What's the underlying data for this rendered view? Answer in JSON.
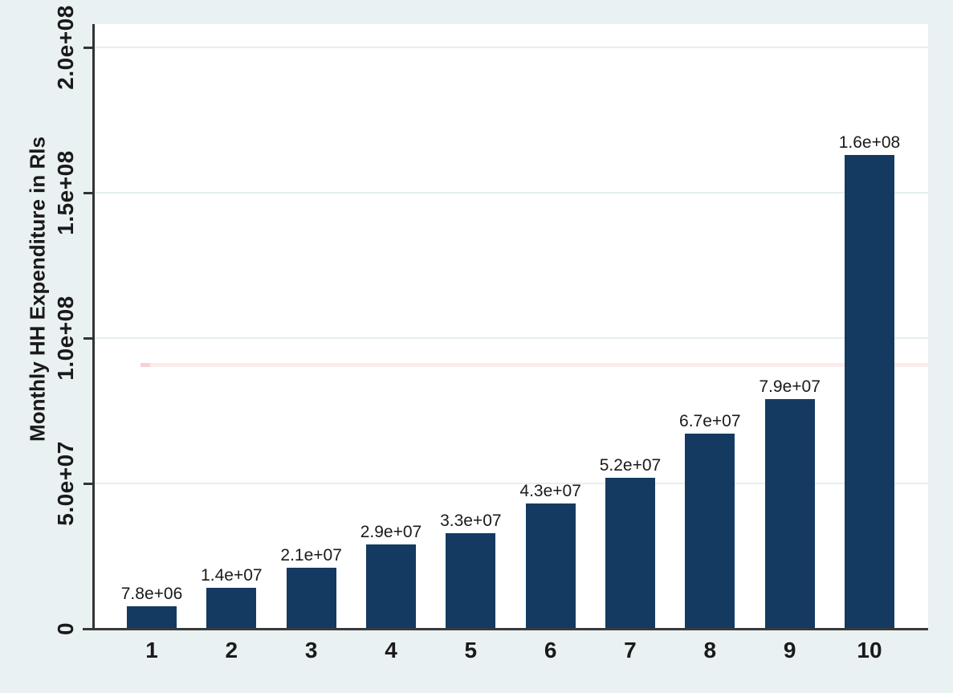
{
  "chart_data": {
    "type": "bar",
    "ylabel": "Monthly HH Expenditure in Rls",
    "xlabel": "",
    "categories": [
      "1",
      "2",
      "3",
      "4",
      "5",
      "6",
      "7",
      "8",
      "9",
      "10"
    ],
    "values": [
      7800000,
      14000000,
      21000000,
      29000000,
      33000000,
      43000000,
      52000000,
      67000000,
      79000000,
      163000000
    ],
    "bar_labels": [
      "7.8e+06",
      "1.4e+07",
      "2.1e+07",
      "2.9e+07",
      "3.3e+07",
      "4.3e+07",
      "5.2e+07",
      "6.7e+07",
      "7.9e+07",
      "1.6e+08"
    ],
    "y_ticks": [
      {
        "value": 0,
        "label": "0"
      },
      {
        "value": 50000000,
        "label": "5.0e+07"
      },
      {
        "value": 100000000,
        "label": "1.0e+08"
      },
      {
        "value": 150000000,
        "label": "1.5e+08"
      },
      {
        "value": 200000000,
        "label": "2.0e+08"
      }
    ],
    "ylim": [
      0,
      208000000
    ],
    "grid": "faint horizontal gridlines at major y ticks",
    "legend": "none",
    "colors": {
      "bar": "#143a61",
      "outer_background": "#eaf1f3",
      "plot_background": "#ffffff",
      "axis": "#3a3a3a",
      "text": "#1a1a1a",
      "gridline": "#e6eef0",
      "artifact_line": "#fbecec"
    },
    "artifact_line": {
      "description": "faint pink horizontal smudge across plot (scan artifact)",
      "approx_value": 91000000
    }
  }
}
